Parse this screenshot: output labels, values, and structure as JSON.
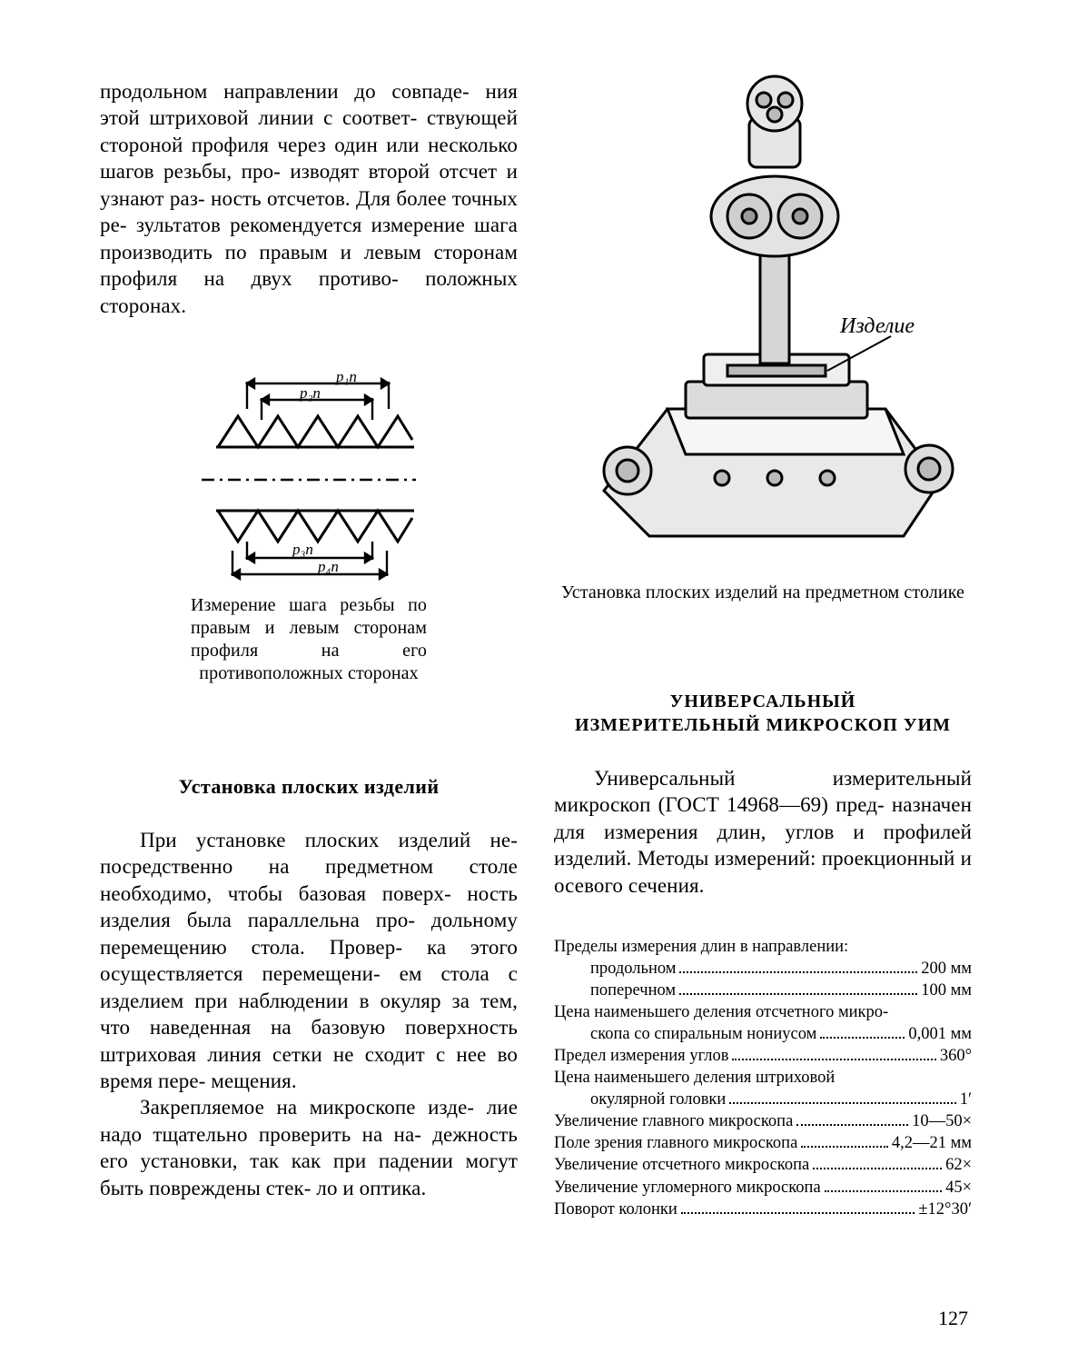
{
  "page_number": "127",
  "left": {
    "para1": "продольном направлении до совпаде-\nния этой штриховой линии с соответ-\nствующей стороной профиля через один или несколько шагов резьбы, про-\nизводят второй отсчет и узнают раз-\nность отсчетов. Для более точных ре-\nзультатов рекомендуется измерение шага производить по правым и левым сторонам профиля на двух противо-\nположных сторонах.",
    "fig1": {
      "labels": {
        "top1": "p₁n",
        "top2": "p₂n",
        "bot1": "p₃n",
        "bot2": "p₄n"
      },
      "caption": "Измерение шага резьбы по правым и левым сторонам профиля на его противоположных сторонах"
    },
    "heading2": "Установка плоских изделий",
    "para2": "При установке плоских изделий не-\nпосредственно на предметном столе необходимо, чтобы базовая поверх-\nность изделия была параллельна про-\nдольному перемещению стола. Провер-\nка этого осуществляется перемещени-\nем стола с изделием при наблюдении в окуляр за тем, что наведенная на базовую поверхность штриховая линия сетки не сходит с нее во время пере-\nмещения.",
    "para3": "Закрепляемое на микроскопе изде-\nлие надо тщательно проверить на на-\nдежность его установки, так как при падении могут быть повреждены стек-\nло и оптика."
  },
  "right": {
    "fig_label": "Изделие",
    "fig_caption": "Установка плоских изделий на предметном столике",
    "section_title_1": "УНИВЕРСАЛЬНЫЙ",
    "section_title_2": "ИЗМЕРИТЕЛЬНЫЙ МИКРОСКОП УИМ",
    "para1": "Универсальный измерительный микроскоп (ГОСТ 14968—69) пред-\nназначен для измерения длин, углов и профилей изделий. Методы измерений: проекционный и осевого сечения.",
    "specs_intro": "Пределы измерения длин в направлении:",
    "specs": [
      {
        "sub": true,
        "label": "продольном",
        "value": "200 мм"
      },
      {
        "sub": true,
        "label": "поперечном",
        "value": "100 мм"
      },
      {
        "sub": false,
        "label": "Цена наименьшего деления отсчетного микро-",
        "value": ""
      },
      {
        "sub": true,
        "label": "скопа со спиральным нониусом",
        "value": "0,001 мм"
      },
      {
        "sub": false,
        "label": "Предел измерения углов",
        "value": "360°"
      },
      {
        "sub": false,
        "label": "Цена наименьшего деления штриховой",
        "value": ""
      },
      {
        "sub": true,
        "label": "окулярной головки",
        "value": "1′"
      },
      {
        "sub": false,
        "label": "Увеличение главного микроскопа",
        "value": "10—50×"
      },
      {
        "sub": false,
        "label": "Поле зрения главного микроскопа",
        "value": "4,2—21 мм"
      },
      {
        "sub": false,
        "label": "Увеличение отсчетного микроскопа",
        "value": "62×"
      },
      {
        "sub": false,
        "label": "Увеличение угломерного микроскопа",
        "value": "45×"
      },
      {
        "sub": false,
        "label": "Поворот колонки",
        "value": "±12°30′"
      }
    ]
  }
}
